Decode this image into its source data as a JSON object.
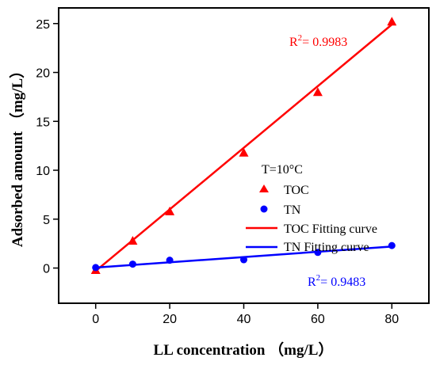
{
  "chart_data": {
    "type": "scatter",
    "xlabel": "LL concentration （mg/L）",
    "ylabel": "Adsorbed amount （mg/L）",
    "xlim": [
      -10,
      90
    ],
    "ylim": [
      -3.6,
      26.6
    ],
    "xticks": [
      0,
      20,
      40,
      60,
      80
    ],
    "yticks": [
      0,
      5,
      10,
      15,
      20,
      25
    ],
    "legend": {
      "position": "middle-right",
      "heading": "T=10°C"
    },
    "series": [
      {
        "name": "TOC",
        "marker": "triangle",
        "color": "#ff0000",
        "x": [
          0,
          10,
          20,
          40,
          60,
          80
        ],
        "y": [
          -0.2,
          2.8,
          5.8,
          11.8,
          18.0,
          25.2
        ]
      },
      {
        "name": "TN",
        "marker": "circle",
        "color": "#0000ff",
        "x": [
          0,
          10,
          20,
          40,
          60,
          80
        ],
        "y": [
          0.05,
          0.4,
          0.8,
          0.85,
          1.6,
          2.3
        ]
      },
      {
        "name": "TOC Fitting curve",
        "kind": "line",
        "color": "#ff0000",
        "x": [
          0,
          80
        ],
        "y": [
          -0.3,
          24.9
        ]
      },
      {
        "name": "TN Fitting curve",
        "kind": "line",
        "color": "#0000ff",
        "x": [
          0,
          80
        ],
        "y": [
          0.05,
          2.2
        ]
      }
    ],
    "annotations": [
      {
        "label": "R",
        "sup": "2",
        "rest": "= 0.9983",
        "color": "#ff0000"
      },
      {
        "label": "R",
        "sup": "2",
        "rest": "= 0.9483",
        "color": "#0000ff"
      }
    ]
  }
}
